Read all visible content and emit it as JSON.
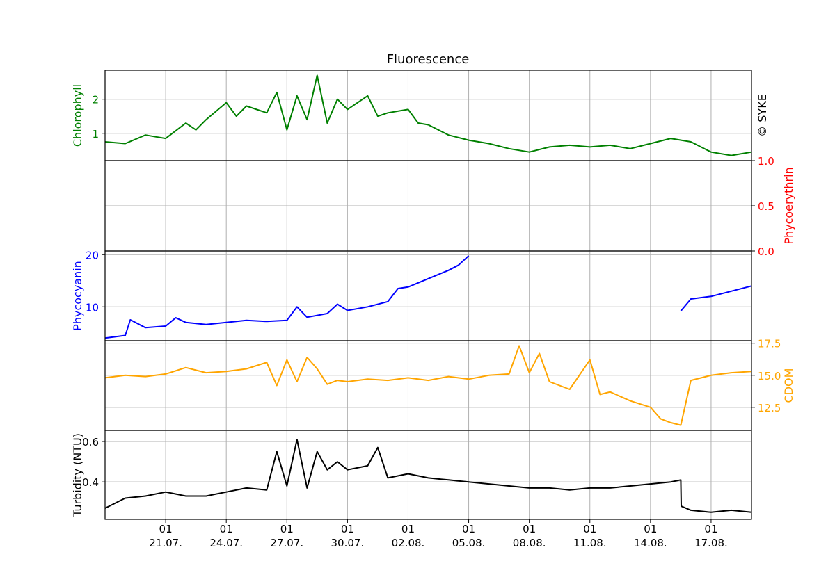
{
  "title": "Fluorescence",
  "watermark": "© SYKE",
  "chart_data": {
    "type": "line",
    "title": "Fluorescence",
    "shared_x": {
      "unit": "day",
      "start": "2019-07-18",
      "end": "2019-08-19",
      "major_ticks": [
        {
          "date": "2019-07-21",
          "day_label": "01",
          "date_label": "21.07."
        },
        {
          "date": "2019-07-24",
          "day_label": "01",
          "date_label": "24.07."
        },
        {
          "date": "2019-07-27",
          "day_label": "01",
          "date_label": "27.07."
        },
        {
          "date": "2019-07-30",
          "day_label": "01",
          "date_label": "30.07."
        },
        {
          "date": "2019-08-02",
          "day_label": "01",
          "date_label": "02.08."
        },
        {
          "date": "2019-08-05",
          "day_label": "01",
          "date_label": "05.08."
        },
        {
          "date": "2019-08-08",
          "day_label": "01",
          "date_label": "08.08."
        },
        {
          "date": "2019-08-11",
          "day_label": "01",
          "date_label": "11.08."
        },
        {
          "date": "2019-08-14",
          "day_label": "01",
          "date_label": "14.08."
        },
        {
          "date": "2019-08-17",
          "day_label": "01",
          "date_label": "17.08."
        }
      ],
      "grid": true
    },
    "panels": [
      {
        "name": "Chlorophyll",
        "ylabel": "Chlorophyll",
        "color": "#008000",
        "axis_side": "left",
        "ylim": [
          0.2,
          2.85
        ],
        "yticks": [
          1,
          2
        ],
        "series": [
          {
            "name": "Chlorophyll",
            "x": [
              "2019-07-18",
              "2019-07-19",
              "2019-07-20",
              "2019-07-20 12:00",
              "2019-07-21",
              "2019-07-22",
              "2019-07-22 12:00",
              "2019-07-23",
              "2019-07-24",
              "2019-07-24 12:00",
              "2019-07-25",
              "2019-07-26",
              "2019-07-26 12:00",
              "2019-07-27",
              "2019-07-27 12:00",
              "2019-07-28",
              "2019-07-28 12:00",
              "2019-07-29",
              "2019-07-29 12:00",
              "2019-07-30",
              "2019-07-31",
              "2019-07-31 12:00",
              "2019-08-01",
              "2019-08-02",
              "2019-08-02 12:00",
              "2019-08-03",
              "2019-08-04",
              "2019-08-05",
              "2019-08-06",
              "2019-08-07",
              "2019-08-08",
              "2019-08-09",
              "2019-08-10",
              "2019-08-11",
              "2019-08-12",
              "2019-08-13",
              "2019-08-14",
              "2019-08-15",
              "2019-08-16",
              "2019-08-17",
              "2019-08-18",
              "2019-08-19"
            ],
            "y": [
              0.75,
              0.7,
              0.95,
              0.9,
              0.85,
              1.3,
              1.1,
              1.4,
              1.9,
              1.5,
              1.8,
              1.6,
              2.2,
              1.1,
              2.1,
              1.4,
              2.7,
              1.3,
              2.0,
              1.7,
              2.1,
              1.5,
              1.6,
              1.7,
              1.3,
              1.25,
              0.95,
              0.8,
              0.7,
              0.55,
              0.45,
              0.6,
              0.65,
              0.6,
              0.65,
              0.55,
              0.7,
              0.85,
              0.75,
              0.45,
              0.35,
              0.45
            ]
          }
        ]
      },
      {
        "name": "Phycoerythrin",
        "ylabel": "Phycoerythrin",
        "color": "#ff0000",
        "axis_side": "right",
        "ylim": [
          0.0,
          1.0
        ],
        "yticks": [
          0.0,
          0.5,
          1.0
        ],
        "tick_labels": [
          "0.0",
          "0.5",
          "1.0"
        ],
        "series": [
          {
            "name": "Phycoerythrin",
            "x": [],
            "y": []
          }
        ]
      },
      {
        "name": "Phycocyanin",
        "ylabel": "Phycocyanin",
        "color": "#0000ff",
        "axis_side": "left",
        "ylim": [
          3.5,
          20.7
        ],
        "yticks": [
          10,
          20
        ],
        "series": [
          {
            "name": "Phycocyanin",
            "x": [
              "2019-07-18",
              "2019-07-19",
              "2019-07-19 06:00",
              "2019-07-20",
              "2019-07-21",
              "2019-07-21 12:00",
              "2019-07-22",
              "2019-07-23",
              "2019-07-24",
              "2019-07-25",
              "2019-07-26",
              "2019-07-27",
              "2019-07-27 12:00",
              "2019-07-28",
              "2019-07-29",
              "2019-07-29 12:00",
              "2019-07-30",
              "2019-07-31",
              "2019-08-01",
              "2019-08-01 12:00",
              "2019-08-02",
              "2019-08-03",
              "2019-08-04",
              "2019-08-04 12:00",
              "2019-08-05"
            ],
            "y": [
              4.0,
              4.5,
              7.5,
              6.0,
              6.3,
              7.9,
              7.0,
              6.6,
              7.0,
              7.4,
              7.2,
              7.4,
              10.0,
              8.0,
              8.7,
              10.5,
              9.3,
              10.0,
              11.0,
              13.5,
              13.8,
              15.4,
              17.0,
              18.0,
              19.8
            ]
          },
          {
            "name": "Phycocyanin",
            "x": [
              "2019-08-15 12:00",
              "2019-08-16",
              "2019-08-17",
              "2019-08-18",
              "2019-08-19"
            ],
            "y": [
              9.2,
              11.5,
              12.0,
              13.0,
              14.0
            ]
          }
        ]
      },
      {
        "name": "CDOM",
        "ylabel": "CDOM",
        "color": "#ffa500",
        "axis_side": "right",
        "ylim": [
          10.7,
          17.7
        ],
        "yticks": [
          12.5,
          15.0,
          17.5
        ],
        "tick_labels": [
          "12.5",
          "15.0",
          "17.5"
        ],
        "series": [
          {
            "name": "CDOM",
            "x": [
              "2019-07-18",
              "2019-07-19",
              "2019-07-20",
              "2019-07-21",
              "2019-07-22",
              "2019-07-23",
              "2019-07-24",
              "2019-07-25",
              "2019-07-26",
              "2019-07-26 12:00",
              "2019-07-27",
              "2019-07-27 12:00",
              "2019-07-28",
              "2019-07-28 12:00",
              "2019-07-29",
              "2019-07-29 12:00",
              "2019-07-30",
              "2019-07-31",
              "2019-08-01",
              "2019-08-02",
              "2019-08-03",
              "2019-08-04",
              "2019-08-05",
              "2019-08-06",
              "2019-08-07",
              "2019-08-07 12:00",
              "2019-08-08",
              "2019-08-08 12:00",
              "2019-08-09",
              "2019-08-10",
              "2019-08-11",
              "2019-08-11 12:00",
              "2019-08-12",
              "2019-08-13",
              "2019-08-14",
              "2019-08-14 12:00",
              "2019-08-15",
              "2019-08-15 12:00",
              "2019-08-16",
              "2019-08-17",
              "2019-08-18",
              "2019-08-19"
            ],
            "y": [
              14.8,
              15.0,
              14.9,
              15.1,
              15.6,
              15.2,
              15.3,
              15.5,
              16.0,
              14.2,
              16.2,
              14.5,
              16.4,
              15.5,
              14.3,
              14.6,
              14.5,
              14.7,
              14.6,
              14.8,
              14.6,
              14.9,
              14.7,
              15.0,
              15.1,
              17.3,
              15.2,
              16.7,
              14.5,
              13.9,
              16.2,
              13.5,
              13.7,
              13.0,
              12.5,
              11.6,
              11.3,
              11.1,
              14.6,
              15.0,
              15.2,
              15.3
            ]
          }
        ]
      },
      {
        "name": "Turbidity",
        "ylabel": "Turbidity (NTU)",
        "color": "#000000",
        "axis_side": "left",
        "ylim": [
          0.215,
          0.655
        ],
        "yticks": [
          0.4,
          0.6
        ],
        "series": [
          {
            "name": "Turbidity (NTU)",
            "x": [
              "2019-07-18",
              "2019-07-19",
              "2019-07-20",
              "2019-07-21",
              "2019-07-22",
              "2019-07-23",
              "2019-07-24",
              "2019-07-25",
              "2019-07-26",
              "2019-07-26 12:00",
              "2019-07-27",
              "2019-07-27 12:00",
              "2019-07-28",
              "2019-07-28 12:00",
              "2019-07-29",
              "2019-07-29 12:00",
              "2019-07-30",
              "2019-07-31",
              "2019-07-31 12:00",
              "2019-08-01",
              "2019-08-02",
              "2019-08-03",
              "2019-08-04",
              "2019-08-05",
              "2019-08-06",
              "2019-08-07",
              "2019-08-08",
              "2019-08-09",
              "2019-08-10",
              "2019-08-11",
              "2019-08-12",
              "2019-08-13",
              "2019-08-14",
              "2019-08-15",
              "2019-08-15 12:00",
              "2019-08-15 12:30",
              "2019-08-16",
              "2019-08-17",
              "2019-08-18",
              "2019-08-19"
            ],
            "y": [
              0.27,
              0.32,
              0.33,
              0.35,
              0.33,
              0.33,
              0.35,
              0.37,
              0.36,
              0.55,
              0.38,
              0.61,
              0.37,
              0.55,
              0.46,
              0.5,
              0.46,
              0.48,
              0.57,
              0.42,
              0.44,
              0.42,
              0.41,
              0.4,
              0.39,
              0.38,
              0.37,
              0.37,
              0.36,
              0.37,
              0.37,
              0.38,
              0.39,
              0.4,
              0.41,
              0.28,
              0.26,
              0.25,
              0.26,
              0.25
            ]
          }
        ]
      }
    ]
  }
}
